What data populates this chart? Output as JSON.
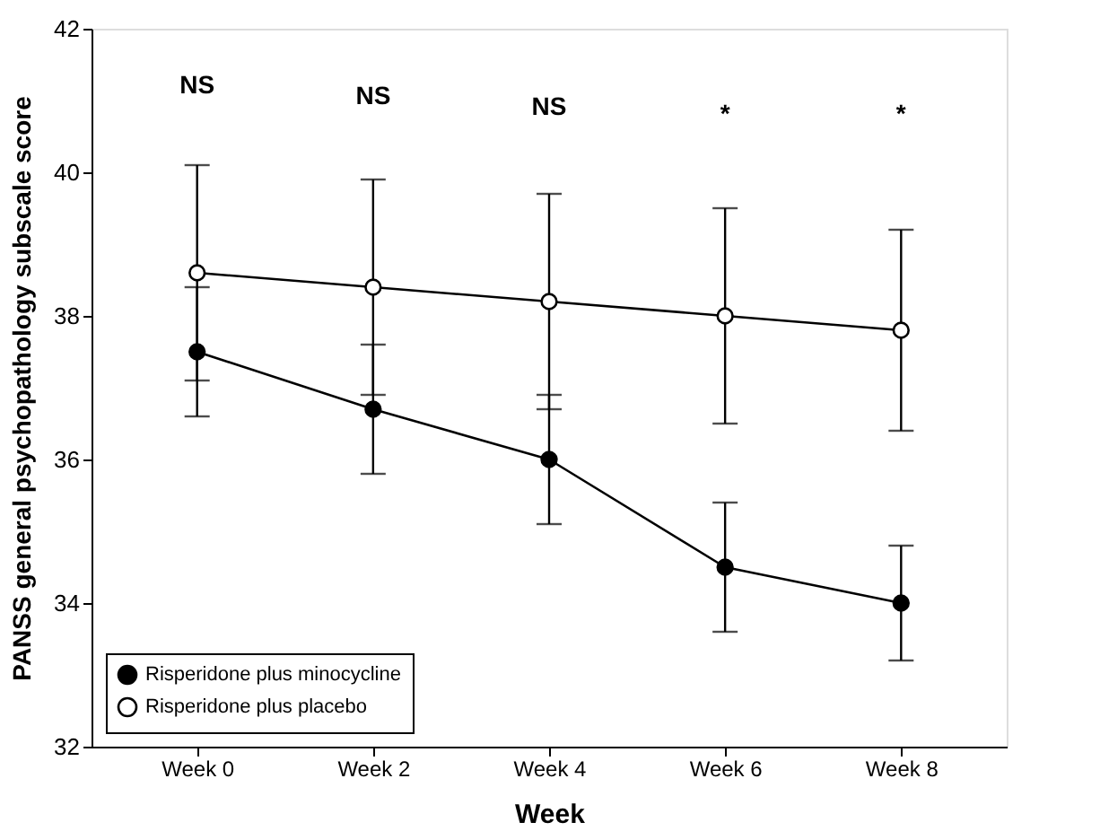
{
  "chart_data": {
    "type": "line",
    "xlabel": "Week",
    "ylabel": "PANSS general psychopathology subscale score",
    "categories": [
      "Week 0",
      "Week 2",
      "Week 4",
      "Week 6",
      "Week 8"
    ],
    "ylim": [
      32,
      42
    ],
    "yticks": [
      32,
      34,
      36,
      38,
      40,
      42
    ],
    "grid": false,
    "legend": "bottom left",
    "marker": "circle",
    "line_style": "solid",
    "series": [
      {
        "name": "Risperidone plus minocycline",
        "color": "#000000",
        "values": [
          37.5,
          36.7,
          36.0,
          34.5,
          34.0
        ],
        "errors": [
          0.9,
          0.9,
          0.9,
          0.9,
          0.8
        ]
      },
      {
        "name": "Risperidone plus placebo",
        "color": "#ffffff",
        "values": [
          38.6,
          38.4,
          38.2,
          38.0,
          37.8
        ],
        "errors": [
          1.5,
          1.5,
          1.5,
          1.5,
          1.4
        ]
      }
    ],
    "annotations": [
      "NS",
      "NS",
      "NS",
      "*",
      "*"
    ]
  }
}
